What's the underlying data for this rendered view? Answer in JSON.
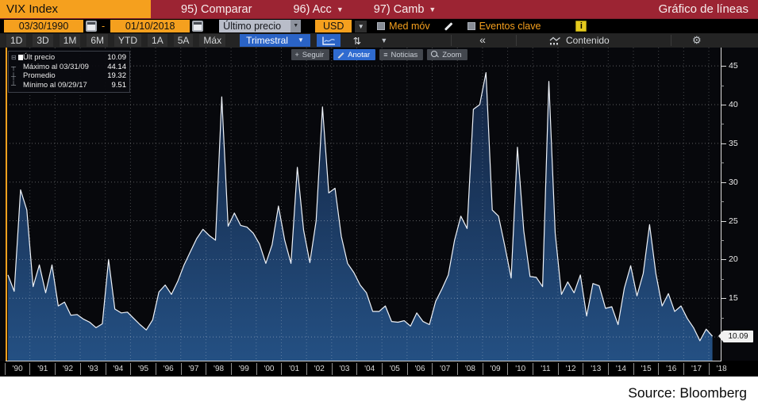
{
  "title_bar": {
    "ticker": "VIX Index",
    "menu_items": [
      {
        "label": "95) Comparar",
        "dropdown": false
      },
      {
        "label": "96) Acc",
        "dropdown": true
      },
      {
        "label": "97) Camb",
        "dropdown": true
      }
    ],
    "view_label": "Gráfico de líneas"
  },
  "controls": {
    "start_date": "03/30/1990",
    "range_separator": "-",
    "end_date": "01/10/2018",
    "price_source": "Último precio",
    "currency": "USD",
    "moving_avg_label": "Med móv",
    "key_events_label": "Eventos clave",
    "info_badge": "i"
  },
  "toolbar": {
    "ranges": [
      "1D",
      "3D",
      "1M",
      "6M",
      "YTD",
      "1A",
      "5A",
      "Máx"
    ],
    "period_selector": "Trimestral",
    "collapse_label": "«",
    "content_label": "Contenido"
  },
  "annotation_bar": {
    "buttons": [
      "Seguir",
      "Anotar",
      "Noticias",
      "Zoom"
    ],
    "active": "Anotar"
  },
  "legend": {
    "rows": [
      {
        "label": "Últ precio",
        "value": "10.09",
        "marker": "swatch"
      },
      {
        "label": "Máximo al 03/31/09",
        "value": "44.14",
        "marker": "max"
      },
      {
        "label": "Promedio",
        "value": "19.32",
        "marker": "avg"
      },
      {
        "label": "Mínimo al 09/29/17",
        "value": "9.51",
        "marker": "min"
      }
    ]
  },
  "last_price_tag": "10.09",
  "source_label": "Source: Bloomberg",
  "colors": {
    "amber": "#f5a01e",
    "header_red": "#9c2433",
    "accent_blue": "#2a63c6",
    "area_fill_top": "#13233f",
    "area_fill_bottom": "#245083",
    "line": "#eef2f8",
    "plot_bg": "#07080c"
  },
  "chart_data": {
    "type": "area",
    "title": "VIX Index — Último precio, Trimestral, 03/30/1990 – 01/10/2018",
    "frequency": "quarterly",
    "start": "03/30/1990",
    "end": "01/10/2018",
    "x_year_labels": [
      "'90",
      "'91",
      "'92",
      "'93",
      "'94",
      "'95",
      "'96",
      "'97",
      "'98",
      "'99",
      "'00",
      "'01",
      "'02",
      "'03",
      "'04",
      "'05",
      "'06",
      "'07",
      "'08",
      "'09",
      "'10",
      "'11",
      "'12",
      "'13",
      "'14",
      "'15",
      "'16",
      "'17",
      "'18"
    ],
    "y_ticks": [
      15,
      20,
      25,
      30,
      35,
      40,
      45
    ],
    "grid_values": [
      10,
      15,
      20,
      25,
      30,
      35,
      40,
      45
    ],
    "ylim": [
      6.9,
      47.4
    ],
    "grid": true,
    "legend_position": "top-left",
    "stats": {
      "last": 10.09,
      "max": 44.14,
      "max_date": "03/31/09",
      "avg": 19.32,
      "min": 9.51,
      "min_date": "09/29/17"
    },
    "values": [
      18.0,
      15.9,
      29.0,
      26.4,
      16.5,
      19.3,
      15.7,
      19.3,
      14.0,
      14.5,
      12.8,
      12.9,
      12.3,
      11.9,
      11.2,
      11.7,
      20.0,
      13.6,
      13.1,
      13.2,
      12.4,
      11.6,
      10.9,
      12.2,
      15.8,
      16.7,
      15.5,
      17.2,
      19.3,
      21.0,
      22.7,
      23.9,
      23.1,
      22.5,
      41.0,
      24.3,
      26.0,
      24.4,
      24.2,
      23.4,
      22.0,
      19.5,
      21.9,
      26.9,
      22.5,
      19.5,
      31.9,
      23.8,
      19.6,
      25.0,
      39.7,
      28.6,
      29.2,
      23.0,
      19.5,
      18.3,
      16.7,
      15.7,
      13.3,
      13.3,
      14.0,
      12.0,
      11.9,
      12.1,
      11.4,
      13.1,
      12.0,
      11.6,
      14.6,
      16.2,
      18.0,
      22.5,
      25.6,
      24.0,
      39.4,
      40.0,
      44.14,
      26.4,
      25.6,
      21.7,
      17.6,
      34.5,
      23.7,
      17.8,
      17.7,
      16.5,
      43.0,
      23.4,
      15.5,
      17.1,
      15.7,
      18.0,
      12.7,
      16.9,
      16.6,
      13.7,
      13.9,
      11.6,
      16.3,
      19.2,
      15.3,
      18.2,
      24.5,
      18.2,
      14.0,
      15.6,
      13.3,
      14.0,
      12.4,
      11.2,
      9.51,
      11.0,
      10.09
    ]
  }
}
